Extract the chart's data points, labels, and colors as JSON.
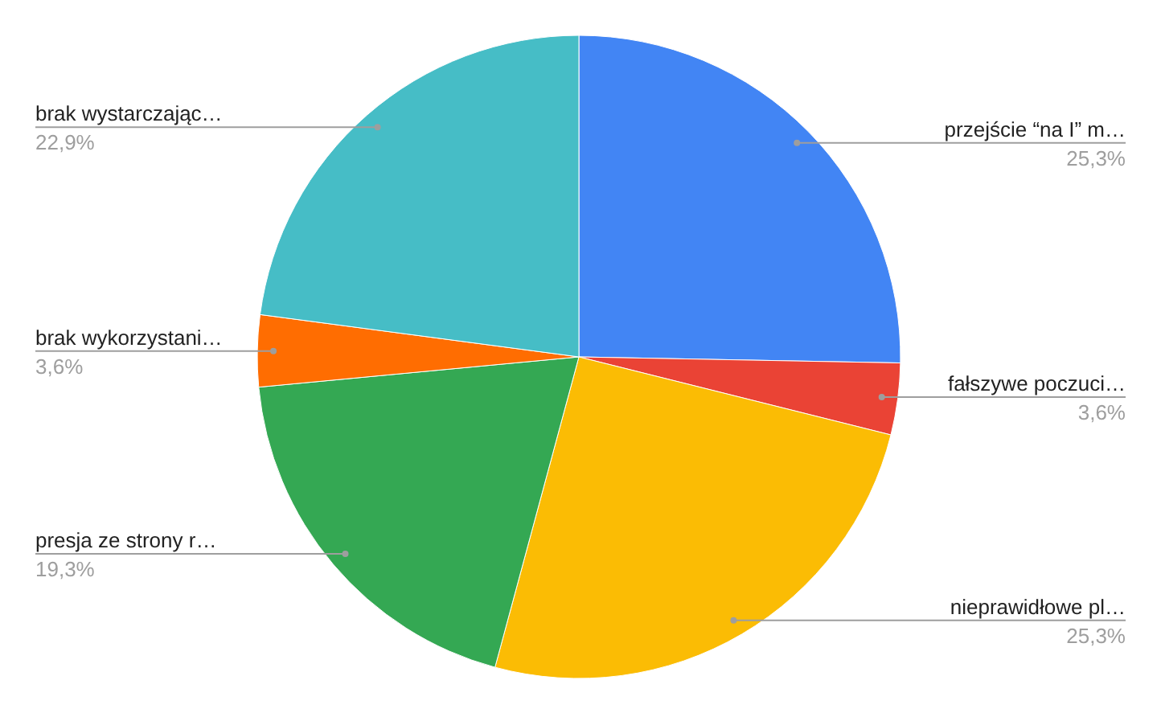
{
  "chart_data": {
    "type": "pie",
    "categories": [
      "przejście “na I” m…",
      "fałszywe poczuci…",
      "nieprawidłowe pl…",
      "presja ze strony r…",
      "brak wykorzystani…",
      "brak wystarczając…"
    ],
    "values": [
      25.3,
      3.6,
      25.3,
      19.3,
      3.6,
      22.9
    ],
    "colors": [
      "#4285f4",
      "#ea4335",
      "#fbbc04",
      "#34a853",
      "#ff6d01",
      "#46bdc6"
    ],
    "value_labels": [
      "25,3%",
      "3,6%",
      "25,3%",
      "19,3%",
      "3,6%",
      "22,9%"
    ]
  }
}
